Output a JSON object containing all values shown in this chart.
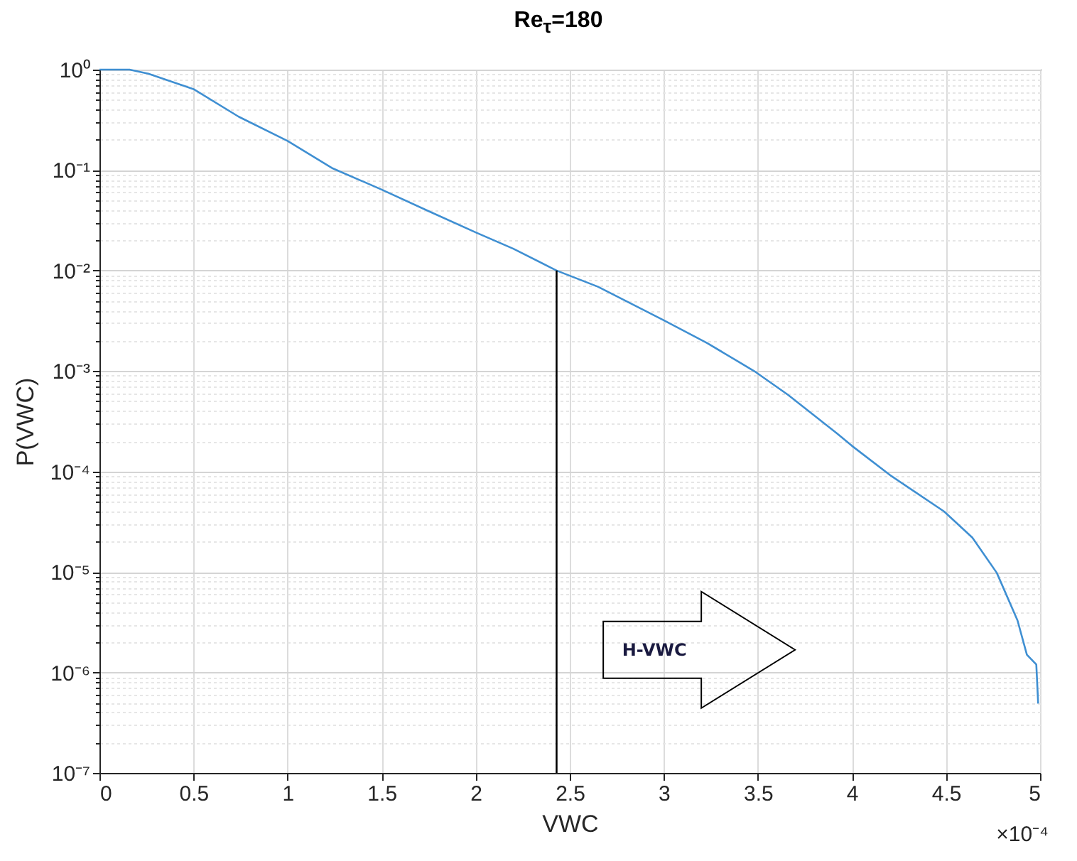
{
  "chart_data": {
    "type": "line",
    "title": "Re$_{τ}$=180",
    "xlabel": "VWC",
    "ylabel": "P(VWC)",
    "log": "y",
    "grid": true,
    "xlim": [
      0,
      5
    ],
    "ylim": [
      1e-07,
      1
    ],
    "xticks": [
      0,
      0.5,
      1,
      1.5,
      2,
      2.5,
      3,
      3.5,
      4,
      4.5,
      5
    ],
    "yticks": [
      {
        "value": 1e-07,
        "label": "10⁻⁷"
      },
      {
        "value": 2e-07,
        "label": null
      },
      {
        "value": 3e-07,
        "label": null
      },
      {
        "value": 4e-07,
        "label": null
      },
      {
        "value": 5e-07,
        "label": null
      },
      {
        "value": 6e-07,
        "label": null
      },
      {
        "value": 7e-07,
        "label": null
      },
      {
        "value": 8e-07,
        "label": null
      },
      {
        "value": 9e-07,
        "label": null
      },
      {
        "value": 1e-06,
        "label": "10⁻⁶"
      },
      {
        "value": 2e-06,
        "label": null
      },
      {
        "value": 3e-06,
        "label": null
      },
      {
        "value": 4e-06,
        "label": null
      },
      {
        "value": 5e-06,
        "label": null
      },
      {
        "value": 6e-06,
        "label": null
      },
      {
        "value": 7e-06,
        "label": null
      },
      {
        "value": 8e-06,
        "label": null
      },
      {
        "value": 9e-06,
        "label": null
      },
      {
        "value": 1e-05,
        "label": "10⁻⁵"
      },
      {
        "value": 2e-05,
        "label": null
      },
      {
        "value": 3e-05,
        "label": null
      },
      {
        "value": 4e-05,
        "label": null
      },
      {
        "value": 5e-05,
        "label": null
      },
      {
        "value": 6e-05,
        "label": null
      },
      {
        "value": 7e-05,
        "label": null
      },
      {
        "value": 8e-05,
        "label": null
      },
      {
        "value": 9e-05,
        "label": null
      },
      {
        "value": 0.0001,
        "label": "10⁻⁴"
      },
      {
        "value": 0.0002,
        "label": null
      },
      {
        "value": 0.0003,
        "label": null
      },
      {
        "value": 0.0004,
        "label": null
      },
      {
        "value": 0.0005,
        "label": null
      },
      {
        "value": 0.0006,
        "label": null
      },
      {
        "value": 0.0007,
        "label": null
      },
      {
        "value": 0.0008,
        "label": null
      },
      {
        "value": 0.0009,
        "label": null
      },
      {
        "value": 0.001,
        "label": "10⁻³"
      },
      {
        "value": 0.002,
        "label": null
      },
      {
        "value": 0.003,
        "label": null
      },
      {
        "value": 0.004,
        "label": null
      },
      {
        "value": 0.005,
        "label": null
      },
      {
        "value": 0.006,
        "label": null
      },
      {
        "value": 0.007,
        "label": null
      },
      {
        "value": 0.008,
        "label": null
      },
      {
        "value": 0.009,
        "label": null
      },
      {
        "value": 0.01,
        "label": "10⁻²"
      },
      {
        "value": 0.02,
        "label": null
      },
      {
        "value": 0.03,
        "label": null
      },
      {
        "value": 0.04,
        "label": null
      },
      {
        "value": 0.05,
        "label": null
      },
      {
        "value": 0.06,
        "label": null
      },
      {
        "value": 0.07,
        "label": null
      },
      {
        "value": 0.08,
        "label": null
      },
      {
        "value": 0.09,
        "label": null
      },
      {
        "value": 0.1,
        "label": "10⁻¹"
      },
      {
        "value": 0.2,
        "label": null
      },
      {
        "value": 0.3,
        "label": null
      },
      {
        "value": 0.4,
        "label": null
      },
      {
        "value": 0.5,
        "label": null
      },
      {
        "value": 0.6,
        "label": null
      },
      {
        "value": 0.7,
        "label": null
      },
      {
        "value": 0.8,
        "label": null
      },
      {
        "value": 0.9,
        "label": null
      },
      {
        "value": 1,
        "label": "10⁰"
      }
    ],
    "annotations": [
      "H-VWC",
      "×10⁻⁴"
    ],
    "series": [
      {
        "color": "#3f8fd2",
        "x": [
          0,
          0.16,
          0.26,
          0.5,
          0.74,
          1.0,
          1.24,
          1.5,
          1.75,
          2.0,
          2.2,
          2.43,
          2.65,
          3.0,
          3.23,
          3.48,
          3.66,
          3.92,
          4.0,
          4.21,
          4.49,
          4.64,
          4.77,
          4.88,
          4.93,
          4.98,
          4.99
        ],
        "values": [
          1,
          1,
          0.91,
          0.64,
          0.34,
          0.195,
          0.104,
          0.064,
          0.039,
          0.024,
          0.0165,
          0.01,
          0.0069,
          0.0032,
          0.0019,
          0.001,
          0.00058,
          0.00024,
          0.00018,
          9e-05,
          4e-05,
          2.2e-05,
          9.8e-06,
          3.3e-06,
          1.5e-06,
          1.2e-06,
          4.9e-07
        ]
      },
      {
        "color": "#000000",
        "x": [
          2.43,
          2.43
        ],
        "values": [
          0.01,
          1e-07
        ]
      }
    ]
  }
}
